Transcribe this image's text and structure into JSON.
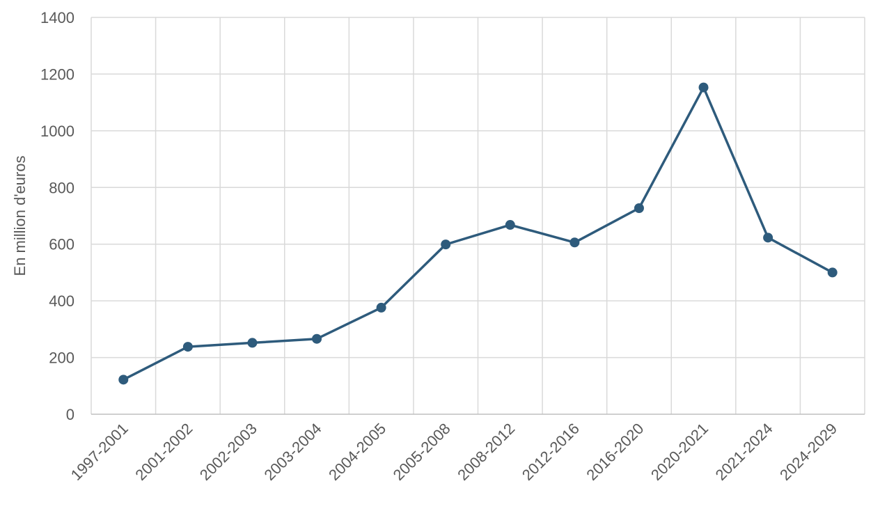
{
  "colors": {
    "series": "#2e5b7c",
    "grid": "#d9d9d9",
    "axis": "#bfbfbf",
    "text": "#595959"
  },
  "chart_data": {
    "type": "line",
    "title": "",
    "xlabel": "",
    "ylabel": "En million d'euros",
    "categories": [
      "1997-2001",
      "2001-2002",
      "2002-2003",
      "2003-2004",
      "2004-2005",
      "2005-2008",
      "2008-2012",
      "2012-2016",
      "2016-2020",
      "2020-2021",
      "2021-2024",
      "2024-2029"
    ],
    "series": [
      {
        "values": [
          122,
          238,
          252,
          266,
          376,
          599,
          668,
          606,
          727,
          1153,
          623,
          500
        ]
      }
    ],
    "ylim": [
      0,
      1400
    ],
    "yticks": [
      "0",
      "200",
      "400",
      "600",
      "800",
      "1000",
      "1200",
      "1400"
    ],
    "grid": true,
    "legend": "none",
    "markers": true
  }
}
